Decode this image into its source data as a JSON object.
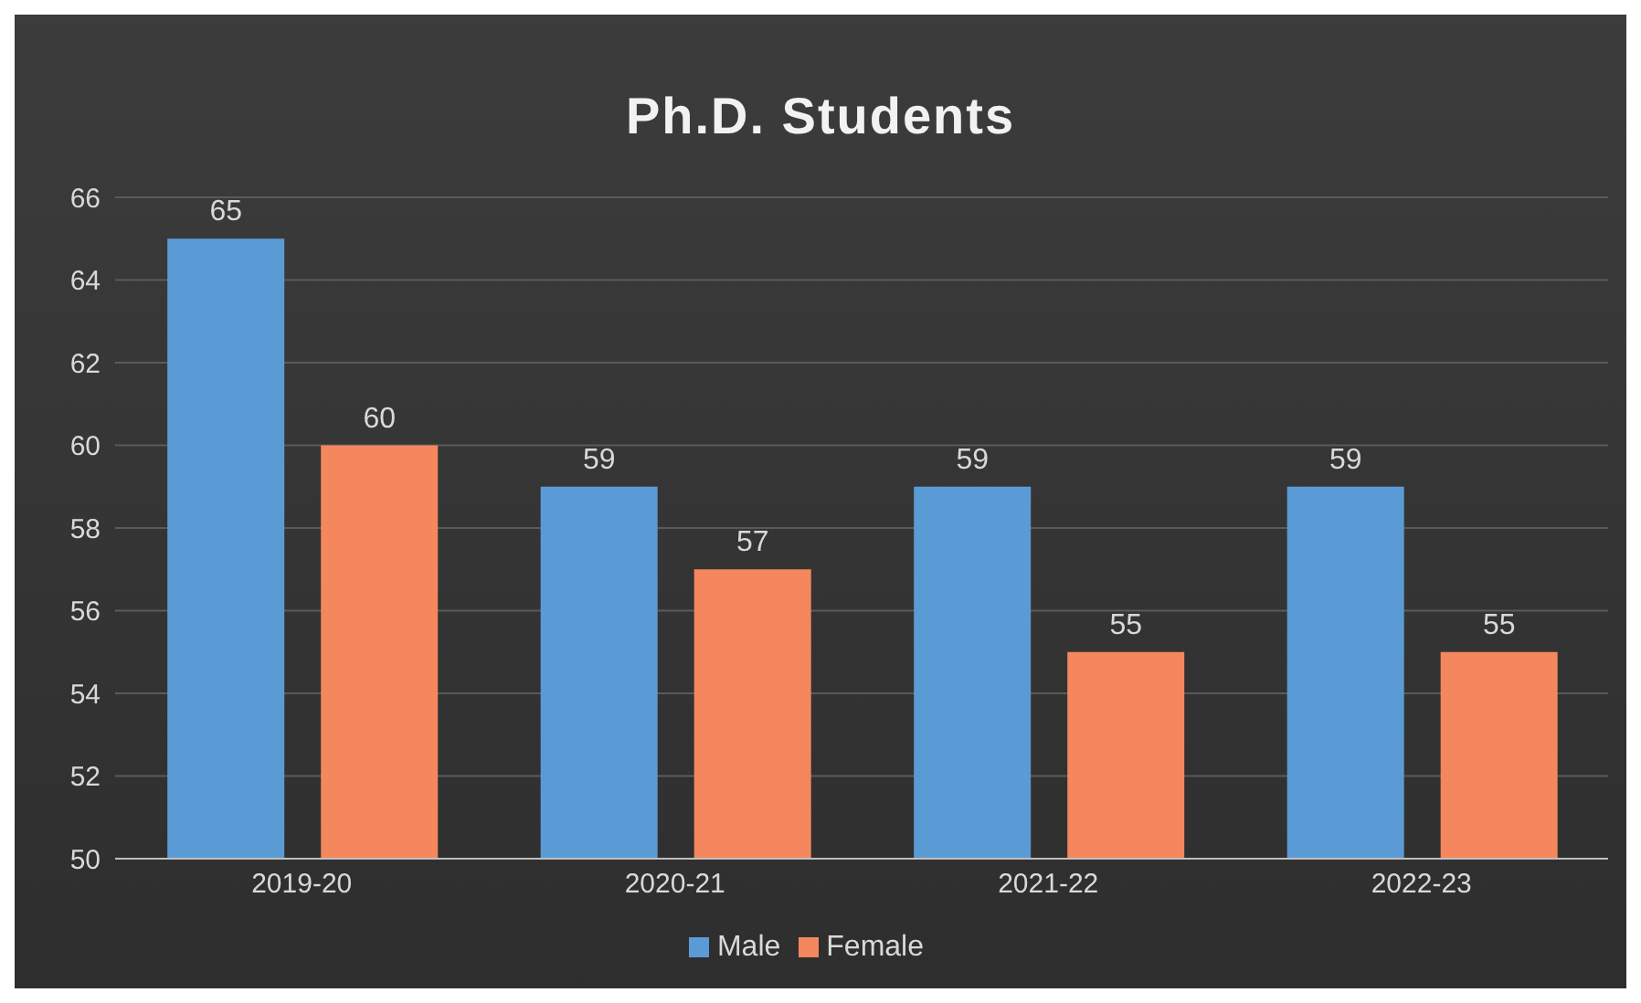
{
  "chart_data": {
    "type": "bar",
    "title": "Ph.D. Students",
    "categories": [
      "2019-20",
      "2020-21",
      "2021-22",
      "2022-23"
    ],
    "series": [
      {
        "name": "Male",
        "color": "#5b9bd5",
        "values": [
          65,
          59,
          59,
          59
        ]
      },
      {
        "name": "Female",
        "color": "#f4875e",
        "values": [
          60,
          57,
          55,
          55
        ]
      }
    ],
    "ylim": [
      50,
      66
    ],
    "yticks": [
      50,
      52,
      54,
      56,
      58,
      60,
      62,
      64,
      66
    ],
    "grid": "y",
    "legend": "bottom",
    "data_labels": true
  }
}
